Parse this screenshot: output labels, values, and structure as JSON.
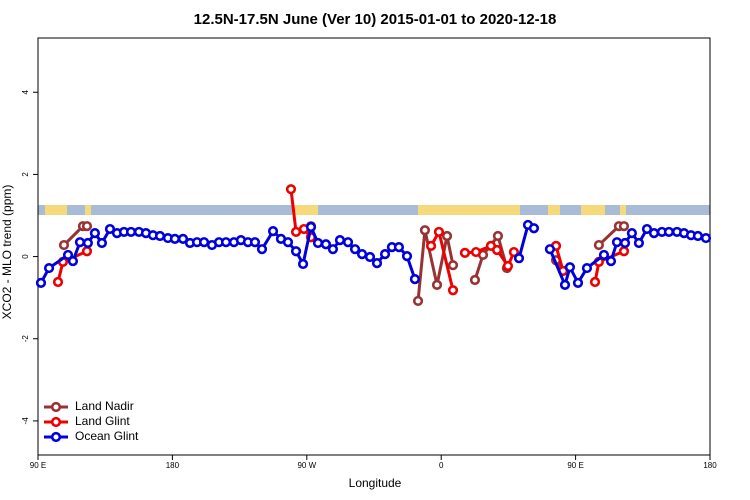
{
  "chart_data": {
    "type": "line",
    "title": "12.5N-17.5N June (Ver 10)   2015-01-01 to 2020-12-18",
    "x_label": "Longitude",
    "y_label": "XCO2 - MLO trend (ppm)",
    "xlim": [
      90,
      540
    ],
    "ylim": [
      -4.83,
      5.32
    ],
    "xticks": [
      {
        "value": 90,
        "label": "90 E"
      },
      180,
      {
        "value": 270,
        "label": "90 W"
      },
      {
        "value": 360,
        "label": "0"
      },
      {
        "value": 450,
        "label": "90 E"
      },
      {
        "value": 540,
        "label": "180"
      }
    ],
    "yticks": [
      -4,
      -2,
      0,
      2,
      4
    ],
    "legend": "bottom-left",
    "series": [
      {
        "name": "Land Nadir",
        "color": "#993333",
        "x": [
          107.4,
          120.1,
          122.8,
          null,
          272.8,
          null,
          344.5,
          349.1,
          357.2,
          363.9,
          367.9,
          null,
          382.6,
          388.0,
          398.0,
          404.0,
          null,
          436.9,
          441.6,
          null,
          465.6,
          479.0,
          482.4
        ],
        "values": [
          0.28,
          0.74,
          0.74,
          null,
          0.74,
          null,
          -1.08,
          0.64,
          -0.69,
          0.5,
          -0.21,
          null,
          -0.57,
          0.04,
          0.5,
          -0.28,
          null,
          -0.09,
          -0.35,
          null,
          0.28,
          0.74,
          0.74
        ]
      },
      {
        "name": "Land Glint",
        "color": "#ee0000",
        "x": [
          103.4,
          106.7,
          122.8,
          null,
          259.4,
          262.8,
          268.1,
          272.8,
          null,
          353.2,
          358.5,
          367.9,
          null,
          375.9,
          383.3,
          393.3,
          397.4,
          404.7,
          408.7,
          null,
          436.9,
          441.6,
          null,
          463.0,
          465.6,
          482.4
        ],
        "values": [
          -0.62,
          -0.13,
          0.13,
          null,
          1.64,
          0.6,
          0.67,
          0.47,
          null,
          0.26,
          0.6,
          -0.82,
          null,
          0.09,
          0.11,
          0.26,
          0.16,
          -0.23,
          0.11,
          null,
          0.26,
          -0.35,
          null,
          -0.62,
          -0.13,
          0.13
        ]
      },
      {
        "name": "Ocean Glint",
        "color": "#0000dd",
        "x": [
          92.0,
          97.4,
          110.1,
          113.4,
          118.1,
          123.4,
          128.1,
          132.8,
          138.2,
          142.9,
          147.6,
          152.3,
          157.6,
          162.3,
          167.0,
          171.7,
          177.0,
          181.7,
          187.1,
          191.8,
          196.5,
          201.2,
          206.5,
          211.2,
          215.9,
          221.2,
          225.9,
          230.6,
          235.3,
          240.0,
          247.4,
          252.7,
          257.4,
          262.8,
          267.5,
          272.8,
          277.5,
          282.8,
          287.5,
          292.2,
          297.6,
          302.3,
          307.0,
          312.3,
          317.0,
          322.4,
          327.0,
          331.7,
          337.1,
          342.4,
          null,
          412.1,
          418.1,
          422.1,
          null,
          432.8,
          442.9,
          446.2,
          451.6,
          457.6,
          469.0,
          473.7,
          477.7,
          483.1,
          487.7,
          492.4,
          497.8,
          502.5,
          507.8,
          512.5,
          517.9,
          522.6,
          527.3,
          531.9,
          537.3
        ],
        "values": [
          -0.64,
          -0.28,
          0.04,
          -0.11,
          0.35,
          0.33,
          0.57,
          0.33,
          0.67,
          0.57,
          0.6,
          0.6,
          0.6,
          0.57,
          0.52,
          0.5,
          0.45,
          0.43,
          0.43,
          0.33,
          0.35,
          0.35,
          0.28,
          0.35,
          0.35,
          0.35,
          0.4,
          0.35,
          0.35,
          0.18,
          0.62,
          0.43,
          0.35,
          0.13,
          -0.18,
          0.72,
          0.33,
          0.3,
          0.18,
          0.4,
          0.35,
          0.18,
          0.06,
          -0.01,
          -0.16,
          0.06,
          0.23,
          0.23,
          0.01,
          -0.55,
          null,
          -0.04,
          0.77,
          0.69,
          null,
          0.18,
          -0.69,
          -0.26,
          -0.64,
          -0.28,
          0.04,
          -0.11,
          0.35,
          0.33,
          0.57,
          0.33,
          0.67,
          0.57,
          0.6,
          0.6,
          0.6,
          0.57,
          0.52,
          0.5,
          0.45
        ]
      }
    ]
  }
}
